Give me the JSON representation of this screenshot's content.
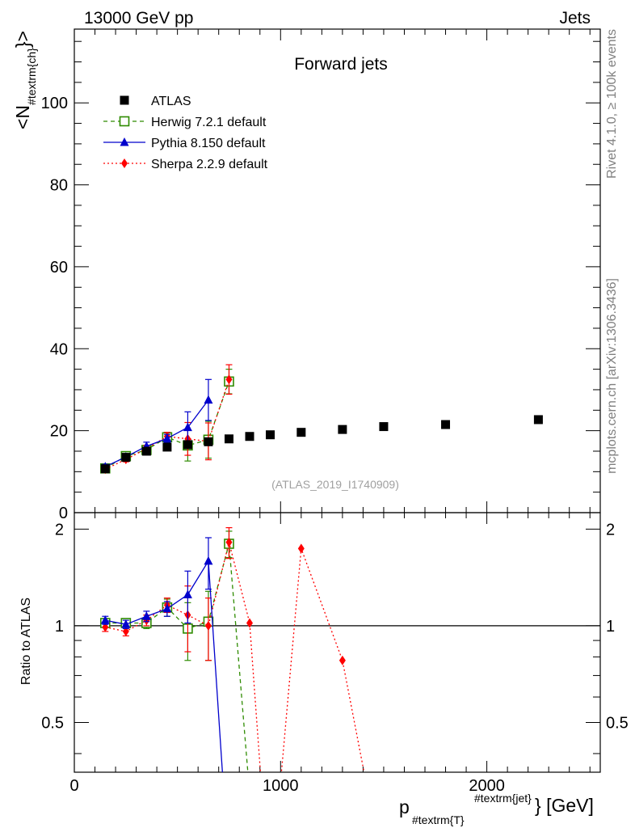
{
  "header": {
    "left": "13000 GeV pp",
    "right": "Jets"
  },
  "side_labels": {
    "rivet": "Rivet 4.1.0, ≥ 100k events",
    "mcplots": "mcplots.cern.ch [arXiv:1306.3436]"
  },
  "chart_data": {
    "type": "scatter",
    "title": "Forward jets",
    "watermark": "(ATLAS_2019_I1740909)",
    "ylabel": {
      "main": "<N",
      "sub": "#textrm{ch}",
      "close": "}>"
    },
    "xlabel": {
      "main": "p",
      "sub": "#textrm{T}",
      "sup": "#textrm{jet}",
      "close": "} [GeV]"
    },
    "ratio_ylabel": "Ratio to ATLAS",
    "xlim": [
      0,
      2550
    ],
    "ylim": [
      0,
      118
    ],
    "ratio_ylim": [
      0.35,
      2.25
    ],
    "x_ticks": [
      {
        "value": 0,
        "label": "0"
      },
      {
        "value": 1000,
        "label": "1000"
      },
      {
        "value": 2000,
        "label": "2000"
      }
    ],
    "y_ticks": [
      {
        "value": 0,
        "label": "0"
      },
      {
        "value": 20,
        "label": "20"
      },
      {
        "value": 40,
        "label": "40"
      },
      {
        "value": 60,
        "label": "60"
      },
      {
        "value": 80,
        "label": "80"
      },
      {
        "value": 100,
        "label": "100"
      }
    ],
    "ratio_ticks": [
      {
        "value": 0.5,
        "label": "0.5"
      },
      {
        "value": 1,
        "label": "1"
      },
      {
        "value": 2,
        "label": "2"
      }
    ],
    "series": [
      {
        "name": "ATLAS",
        "label": "ATLAS",
        "color": "#000000",
        "marker": "square",
        "line": "none",
        "x": [
          150,
          250,
          350,
          450,
          550,
          650,
          750,
          850,
          950,
          1100,
          1300,
          1500,
          1800,
          2250
        ],
        "y": [
          10.7,
          13.5,
          15.0,
          16.0,
          16.6,
          17.3,
          18.0,
          18.6,
          19.0,
          19.6,
          20.3,
          21.0,
          21.5,
          22.7
        ],
        "err": [
          0.4,
          0.4,
          0.4,
          0.4,
          0.4,
          0.4,
          0.4,
          0.4,
          0.4,
          0.4,
          0.4,
          0.4,
          0.4,
          0.4
        ],
        "ratio": [
          1,
          1,
          1,
          1,
          1,
          1,
          1,
          1,
          1,
          1,
          1,
          1,
          1,
          1
        ],
        "ratio_err": [
          0,
          0,
          0,
          0,
          0,
          0,
          0,
          0,
          0,
          0,
          0,
          0,
          0,
          0
        ]
      },
      {
        "name": "Herwig",
        "label": "Herwig 7.2.1 default",
        "color": "#2e8b00",
        "marker": "open-square",
        "line": "dashed",
        "x": [
          150,
          250,
          350,
          450,
          550,
          650,
          750
        ],
        "y": [
          10.8,
          13.8,
          15.3,
          18.4,
          16.4,
          17.8,
          32.0
        ],
        "err": [
          0.6,
          0.6,
          0.8,
          1.2,
          3.8,
          4.5,
          3.0
        ],
        "ratio": [
          1.02,
          1.02,
          1.02,
          1.14,
          0.98,
          1.03,
          1.8
        ],
        "ratio_err": [
          0.03,
          0.03,
          0.04,
          0.07,
          0.2,
          0.25,
          0.17
        ],
        "ratio_tail": [
          [
            850,
            0.3
          ]
        ]
      },
      {
        "name": "Pythia",
        "label": "Pythia 8.150 default",
        "color": "#0000cc",
        "marker": "triangle",
        "line": "solid",
        "x": [
          150,
          250,
          350,
          450,
          550,
          650
        ],
        "y": [
          11.2,
          13.6,
          16.2,
          18.1,
          20.8,
          27.5
        ],
        "err": [
          0.6,
          0.6,
          1.0,
          1.0,
          3.8,
          5.0
        ],
        "ratio": [
          1.04,
          1.01,
          1.07,
          1.13,
          1.25,
          1.59
        ],
        "ratio_err": [
          0.03,
          0.03,
          0.04,
          0.06,
          0.23,
          0.29
        ],
        "ratio_tail": [
          [
            725,
            0.3
          ]
        ]
      },
      {
        "name": "Sherpa",
        "label": "Sherpa 2.2.9 default",
        "color": "#ff0000",
        "marker": "diamond",
        "line": "dotted",
        "x": [
          150,
          250,
          350,
          450,
          550,
          650,
          750
        ],
        "y": [
          10.6,
          13.0,
          15.6,
          18.6,
          18.0,
          17.4,
          32.5
        ],
        "err": [
          0.6,
          0.6,
          0.8,
          1.0,
          4.0,
          4.5,
          3.6
        ],
        "ratio": [
          0.99,
          0.96,
          1.04,
          1.16,
          1.08,
          1.0,
          1.82
        ],
        "ratio_err": [
          0.03,
          0.03,
          0.04,
          0.06,
          0.25,
          0.22,
          0.2
        ],
        "ratio_extra": {
          "x": [
            850,
            1100,
            1300
          ],
          "ratio": [
            1.02,
            1.74,
            0.78
          ],
          "ratio_err": [
            0,
            0,
            0.02
          ]
        },
        "ratio_valleys": [
          [
            910,
            0.3
          ],
          [
            995,
            0.3
          ],
          [
            1425,
            0.3
          ]
        ]
      }
    ]
  }
}
